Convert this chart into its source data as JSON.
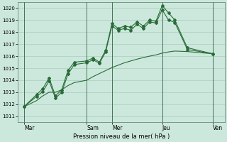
{
  "bg_color": "#cce8dc",
  "grid_color": "#aaccbb",
  "line_color": "#2a6b3a",
  "ylabel": "Pression niveau de la mer( hPa )",
  "ylim": [
    1010.5,
    1020.5
  ],
  "yticks": [
    1011,
    1012,
    1013,
    1014,
    1015,
    1016,
    1017,
    1018,
    1019,
    1020
  ],
  "day_labels": [
    "Mar",
    "Sam",
    "Mer",
    "Jeu",
    "Ven"
  ],
  "day_positions": [
    0,
    10,
    14,
    22,
    30
  ],
  "xlim": [
    -1,
    32
  ],
  "s1_x": [
    0,
    2,
    3,
    4,
    5,
    6,
    7,
    8,
    10,
    11,
    12,
    13,
    14,
    15,
    16,
    17,
    18,
    19,
    20,
    21,
    22,
    23,
    24,
    26,
    30
  ],
  "s1_y": [
    1011.8,
    1012.8,
    1013.3,
    1014.2,
    1012.7,
    1013.2,
    1014.8,
    1015.5,
    1015.6,
    1015.85,
    1015.5,
    1016.5,
    1018.7,
    1018.3,
    1018.5,
    1018.4,
    1018.85,
    1018.5,
    1019.0,
    1018.9,
    1020.2,
    1019.6,
    1019.0,
    1016.7,
    1016.2
  ],
  "s2_x": [
    0,
    2,
    3,
    4,
    5,
    6,
    7,
    8,
    10,
    11,
    12,
    13,
    14,
    15,
    16,
    17,
    18,
    19,
    20,
    21,
    22,
    23,
    24,
    26,
    30
  ],
  "s2_y": [
    1011.8,
    1012.65,
    1013.05,
    1013.95,
    1012.5,
    1013.0,
    1014.5,
    1015.3,
    1015.45,
    1015.7,
    1015.4,
    1016.35,
    1018.5,
    1018.15,
    1018.3,
    1018.15,
    1018.65,
    1018.3,
    1018.85,
    1018.75,
    1019.85,
    1019.0,
    1018.8,
    1016.55,
    1016.2
  ],
  "s3_x": [
    0,
    2,
    3,
    4,
    5,
    6,
    7,
    8,
    10,
    11,
    12,
    13,
    14,
    15,
    16,
    17,
    18,
    19,
    20,
    21,
    22,
    23,
    24,
    26,
    30
  ],
  "s3_y": [
    1011.8,
    1012.3,
    1012.7,
    1013.0,
    1013.0,
    1013.2,
    1013.55,
    1013.8,
    1014.0,
    1014.3,
    1014.55,
    1014.8,
    1015.05,
    1015.25,
    1015.45,
    1015.6,
    1015.75,
    1015.88,
    1016.0,
    1016.1,
    1016.25,
    1016.35,
    1016.42,
    1016.38,
    1016.2
  ]
}
